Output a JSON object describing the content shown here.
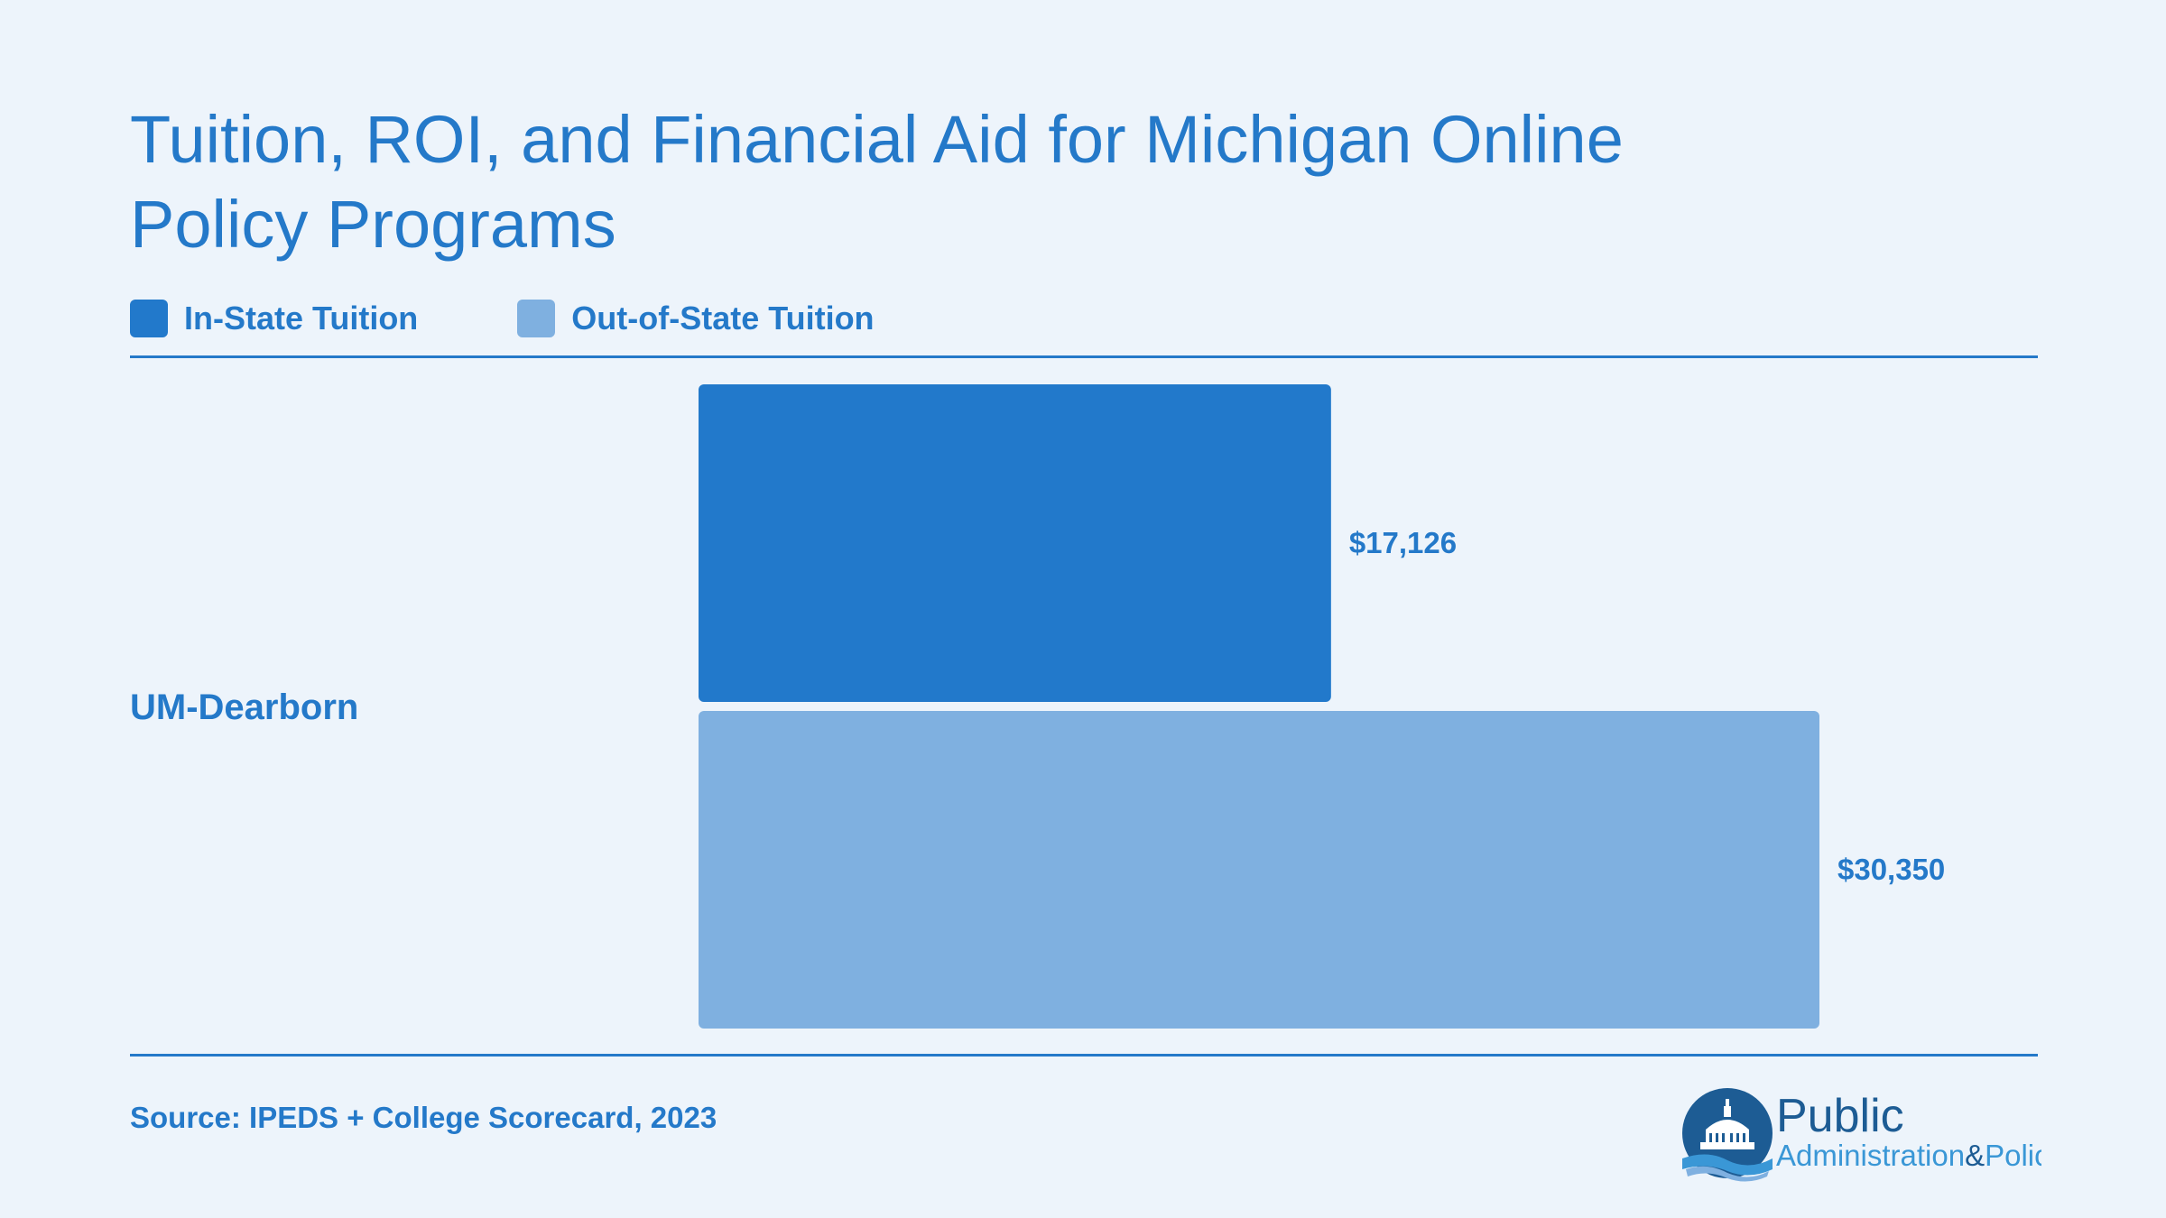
{
  "title": "Tuition, ROI, and Financial Aid for Michigan Online Policy Programs",
  "legend": [
    {
      "label": "In-State Tuition",
      "color": "#2279cb"
    },
    {
      "label": "Out-of-State Tuition",
      "color": "#7fb0e0"
    }
  ],
  "source": "Source: IPEDS + College Scorecard, 2023",
  "logo": {
    "word_top": "Public",
    "word_mid": "Administration",
    "word_amp": "&",
    "word_end": "Policy",
    "icon": "capitol-dome-icon"
  },
  "chart_data": {
    "type": "bar",
    "orientation": "horizontal",
    "title": "Tuition, ROI, and Financial Aid for Michigan Online Policy Programs",
    "categories": [
      "UM-Dearborn"
    ],
    "series": [
      {
        "name": "In-State Tuition",
        "values": [
          17126
        ],
        "labels": [
          "$17,126"
        ],
        "color": "#2279cb"
      },
      {
        "name": "Out-of-State Tuition",
        "values": [
          30350
        ],
        "labels": [
          "$30,350"
        ],
        "color": "#7fb0e0"
      }
    ],
    "xlim": [
      0,
      30350
    ],
    "grid": false,
    "legend_position": "top-left"
  }
}
